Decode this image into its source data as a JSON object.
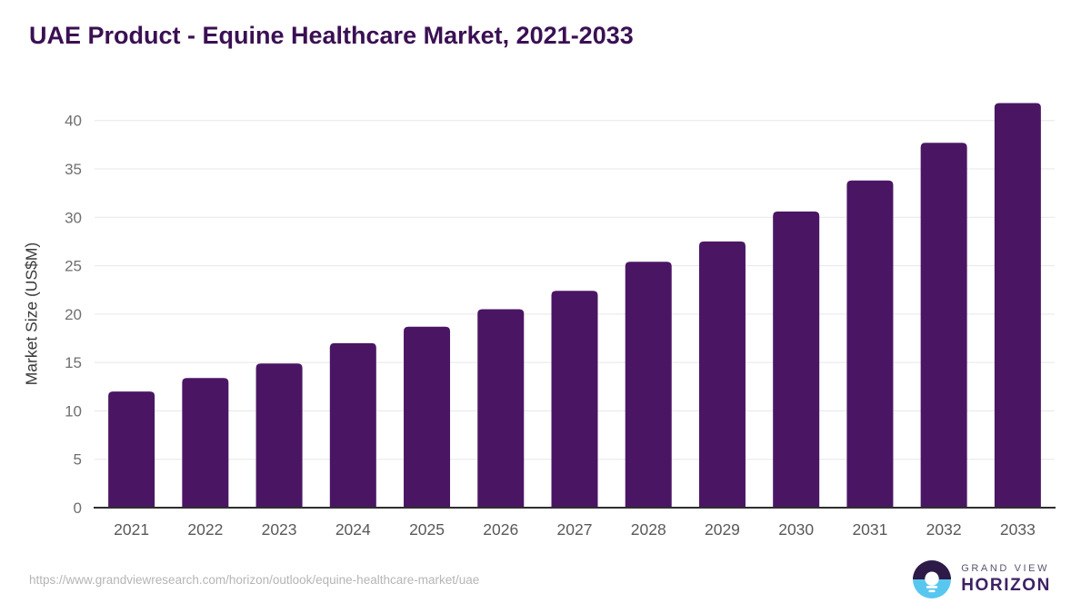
{
  "header": {
    "title": "UAE Product - Equine Healthcare Market, 2021-2033"
  },
  "chart_data": {
    "type": "bar",
    "title": "UAE Product - Equine Healthcare Market, 2021-2033",
    "categories": [
      "2021",
      "2022",
      "2023",
      "2024",
      "2025",
      "2026",
      "2027",
      "2028",
      "2029",
      "2030",
      "2031",
      "2032",
      "2033"
    ],
    "values": [
      12.0,
      13.4,
      14.9,
      17.0,
      18.7,
      20.5,
      22.4,
      25.4,
      27.5,
      30.6,
      33.8,
      37.7,
      41.8
    ],
    "xlabel": "",
    "ylabel": "Market Size (US$M)",
    "ylim": [
      0,
      43.5
    ],
    "yticks": [
      0,
      5,
      10,
      15,
      20,
      25,
      30,
      35,
      40
    ],
    "grid": "horizontal",
    "legend": "none",
    "bar_color": "#4a1664"
  },
  "colors": {
    "title": "#3b1053",
    "bar": "#4a1664",
    "gridline": "#e7e7e7",
    "axis_line": "#2f2f2f",
    "y_tick": "#6f6f6f",
    "x_tick": "#58595b",
    "y_axis_title": "#3a3a3a",
    "source_url": "#b5b5b5",
    "logo_dark_purple": "#2e1a47",
    "logo_light_blue": "#58c7f0",
    "logo_top_text_color": "#5c5470",
    "logo_bottom_text_color": "#3e2165"
  },
  "footer": {
    "source_url": "https://www.grandviewresearch.com/horizon/outlook/equine-healthcare-market/uae",
    "logo": {
      "icon": "horizon-sun-over-water-icon",
      "top_text": "GRAND VIEW",
      "bottom_text": "HORIZON"
    }
  }
}
